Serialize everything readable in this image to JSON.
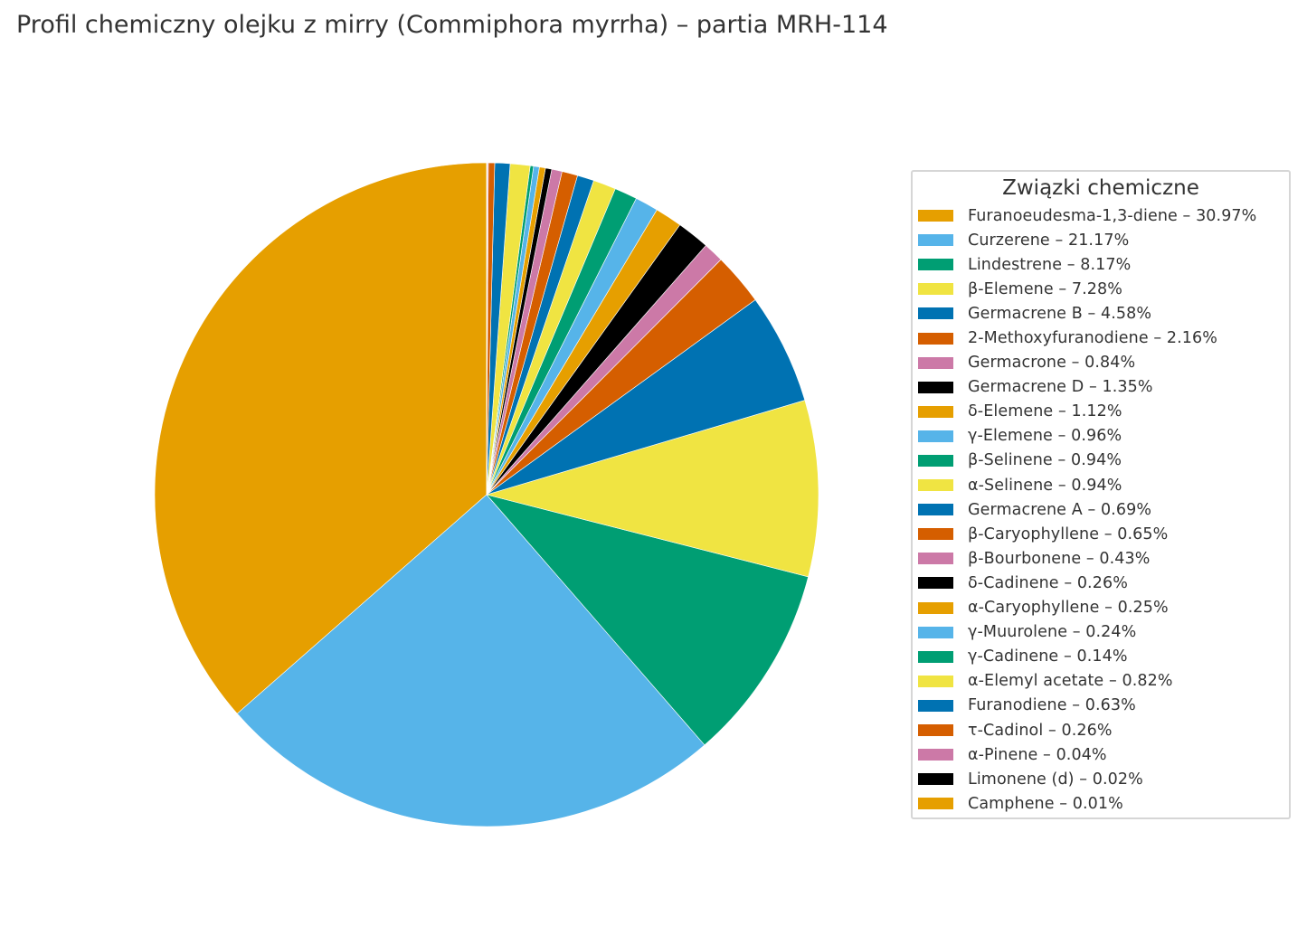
{
  "chart_data": {
    "type": "pie",
    "title": "Profil chemiczny olejku z mirry (Commiphora myrrha) – partia MRH-114",
    "legend_title": "Związki chemiczne",
    "legend_position": "right",
    "start_angle_deg": 90,
    "direction": "counterclockwise",
    "slices": [
      {
        "label": "Furanoeudesma-1,3-diene – 30.97%",
        "value": 30.97,
        "color": "#E69F00"
      },
      {
        "label": "Curzerene – 21.17%",
        "value": 21.17,
        "color": "#56B4E9"
      },
      {
        "label": "Lindestrene – 8.17%",
        "value": 8.17,
        "color": "#009E73"
      },
      {
        "label": "β-Elemene – 7.28%",
        "value": 7.28,
        "color": "#F0E442"
      },
      {
        "label": "Germacrene B – 4.58%",
        "value": 4.58,
        "color": "#0072B2"
      },
      {
        "label": "2-Methoxyfuranodiene – 2.16%",
        "value": 2.16,
        "color": "#D55E00"
      },
      {
        "label": "Germacrone – 0.84%",
        "value": 0.84,
        "color": "#CC79A7"
      },
      {
        "label": "Germacrene D – 1.35%",
        "value": 1.35,
        "color": "#000000"
      },
      {
        "label": "δ-Elemene – 1.12%",
        "value": 1.12,
        "color": "#E69F00"
      },
      {
        "label": "γ-Elemene – 0.96%",
        "value": 0.96,
        "color": "#56B4E9"
      },
      {
        "label": "β-Selinene – 0.94%",
        "value": 0.94,
        "color": "#009E73"
      },
      {
        "label": "α-Selinene – 0.94%",
        "value": 0.94,
        "color": "#F0E442"
      },
      {
        "label": "Germacrene A – 0.69%",
        "value": 0.69,
        "color": "#0072B2"
      },
      {
        "label": "β-Caryophyllene – 0.65%",
        "value": 0.65,
        "color": "#D55E00"
      },
      {
        "label": "β-Bourbonene – 0.43%",
        "value": 0.43,
        "color": "#CC79A7"
      },
      {
        "label": "δ-Cadinene – 0.26%",
        "value": 0.26,
        "color": "#000000"
      },
      {
        "label": "α-Caryophyllene – 0.25%",
        "value": 0.25,
        "color": "#E69F00"
      },
      {
        "label": "γ-Muurolene – 0.24%",
        "value": 0.24,
        "color": "#56B4E9"
      },
      {
        "label": "γ-Cadinene – 0.14%",
        "value": 0.14,
        "color": "#009E73"
      },
      {
        "label": "α-Elemyl acetate – 0.82%",
        "value": 0.82,
        "color": "#F0E442"
      },
      {
        "label": "Furanodiene – 0.63%",
        "value": 0.63,
        "color": "#0072B2"
      },
      {
        "label": "τ-Cadinol – 0.26%",
        "value": 0.26,
        "color": "#D55E00"
      },
      {
        "label": "α-Pinene – 0.04%",
        "value": 0.04,
        "color": "#CC79A7"
      },
      {
        "label": "Limonene (d) – 0.02%",
        "value": 0.02,
        "color": "#000000"
      },
      {
        "label": "Camphene – 0.01%",
        "value": 0.01,
        "color": "#E69F00"
      }
    ]
  }
}
